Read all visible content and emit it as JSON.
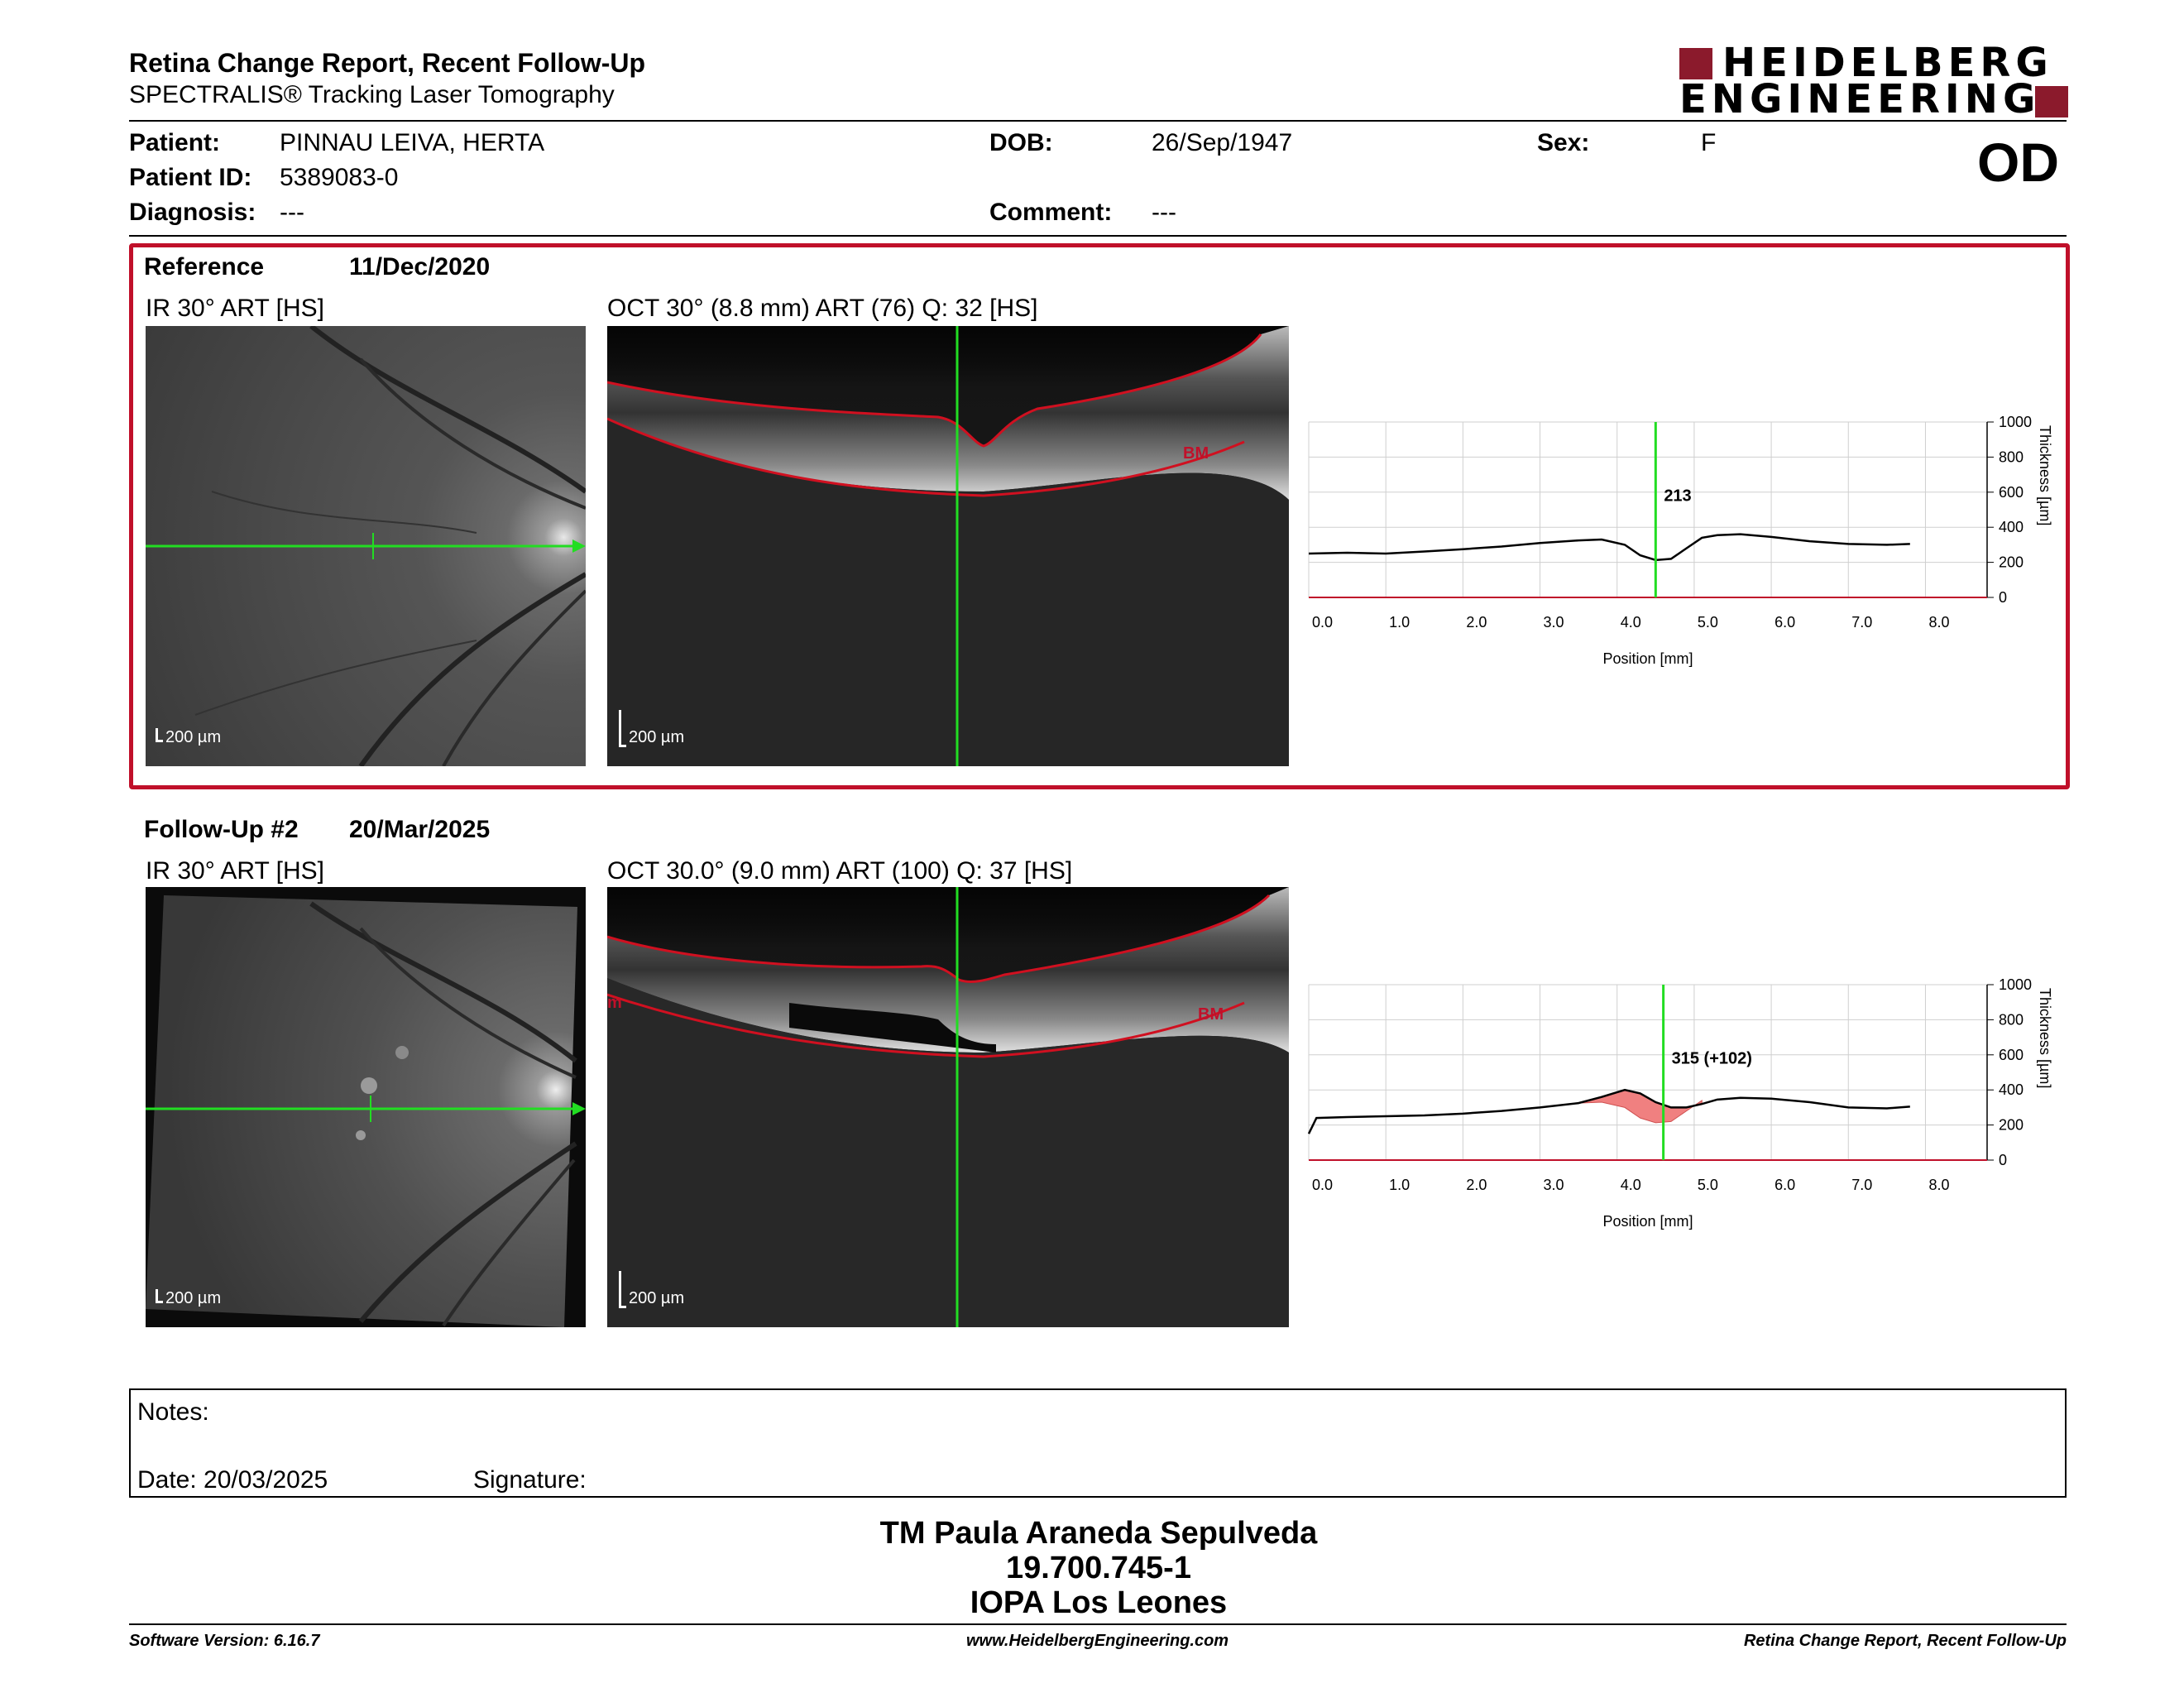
{
  "header": {
    "title": "Retina Change Report, Recent Follow-Up",
    "subtitle": "SPECTRALIS® Tracking Laser Tomography",
    "logo_line1": "HEIDELBERG",
    "logo_line2": "ENGINEERING",
    "eye": "OD"
  },
  "patient": {
    "patient_label": "Patient:",
    "patient_value": "PINNAU LEIVA, HERTA",
    "dob_label": "DOB:",
    "dob_value": "26/Sep/1947",
    "sex_label": "Sex:",
    "sex_value": "F",
    "id_label": "Patient ID:",
    "id_value": "5389083-0",
    "diagnosis_label": "Diagnosis:",
    "diagnosis_value": "---",
    "comment_label": "Comment:",
    "comment_value": "---"
  },
  "reference": {
    "label": "Reference",
    "date": "11/Dec/2020",
    "ir_label": "IR 30° ART [HS]",
    "oct_label": "OCT 30° (8.8 mm) ART (76) Q: 32 [HS]",
    "scale_ir": "200 µm",
    "scale_oct": "200 µm",
    "bm_label": "BM"
  },
  "followup": {
    "label": "Follow-Up #2",
    "date": "20/Mar/2025",
    "ir_label": "IR 30° ART [HS]",
    "oct_label": "OCT 30.0° (9.0 mm) ART (100) Q: 37 [HS]",
    "scale_ir": "200 µm",
    "scale_oct": "200 µm",
    "bm_label": "BM",
    "m_label": "m"
  },
  "chart_data": [
    {
      "type": "line",
      "xlabel": "Position [mm]",
      "ylabel": "Thickness [µm]",
      "xlim": [
        0,
        8.8
      ],
      "ylim": [
        0,
        1000
      ],
      "x_ticks": [
        "0.0",
        "1.0",
        "2.0",
        "3.0",
        "4.0",
        "5.0",
        "6.0",
        "7.0",
        "8.0"
      ],
      "y_ticks": [
        "0",
        "200",
        "400",
        "600",
        "800",
        "1000"
      ],
      "cursor_x": 4.5,
      "cursor_label": "213",
      "grid": true,
      "series": [
        {
          "x": [
            0,
            0.5,
            1.0,
            1.5,
            2.0,
            2.5,
            3.0,
            3.5,
            3.8,
            4.1,
            4.3,
            4.5,
            4.7,
            4.9,
            5.1,
            5.3,
            5.6,
            6.0,
            6.5,
            7.0,
            7.5,
            7.8
          ],
          "y": [
            250,
            255,
            250,
            262,
            275,
            290,
            310,
            325,
            330,
            300,
            240,
            213,
            220,
            280,
            340,
            355,
            360,
            345,
            320,
            305,
            300,
            305
          ]
        }
      ]
    },
    {
      "type": "line",
      "xlabel": "Position [mm]",
      "ylabel": "Thickness [µm]",
      "xlim": [
        0,
        8.8
      ],
      "ylim": [
        0,
        1000
      ],
      "x_ticks": [
        "0.0",
        "1.0",
        "2.0",
        "3.0",
        "4.0",
        "5.0",
        "6.0",
        "7.0",
        "8.0"
      ],
      "y_ticks": [
        "0",
        "200",
        "400",
        "600",
        "800",
        "1000"
      ],
      "cursor_x": 4.6,
      "cursor_label": "315 (+102)",
      "grid": true,
      "series": [
        {
          "x": [
            0,
            0.1,
            0.5,
            1.0,
            1.5,
            2.0,
            2.5,
            3.0,
            3.5,
            3.8,
            4.1,
            4.3,
            4.5,
            4.7,
            4.9,
            5.1,
            5.3,
            5.6,
            6.0,
            6.5,
            7.0,
            7.5,
            7.8
          ],
          "y": [
            150,
            240,
            245,
            250,
            255,
            265,
            280,
            300,
            325,
            360,
            400,
            380,
            330,
            300,
            300,
            320,
            345,
            355,
            350,
            330,
            300,
            295,
            305
          ]
        },
        {
          "x": [
            3.5,
            3.8,
            4.1,
            4.3,
            4.5,
            4.7,
            4.9,
            5.1
          ],
          "y": [
            325,
            330,
            300,
            240,
            213,
            220,
            280,
            340
          ]
        }
      ]
    }
  ],
  "notes": {
    "notes_label": "Notes:",
    "date_label": "Date: 20/03/2025",
    "signature_label": "Signature:"
  },
  "signature_block": {
    "line1": "TM Paula Araneda Sepulveda",
    "line2": "19.700.745-1",
    "line3": "IOPA Los Leones"
  },
  "footer": {
    "software": "Software Version: 6.16.7",
    "website": "www.HeidelbergEngineering.com",
    "report": "Retina Change Report, Recent Follow-Up"
  },
  "colors": {
    "brand": "#8b1a2c",
    "frame_red": "#c0102a",
    "scan_green": "#22dd22",
    "change_fill": "#f08080"
  }
}
